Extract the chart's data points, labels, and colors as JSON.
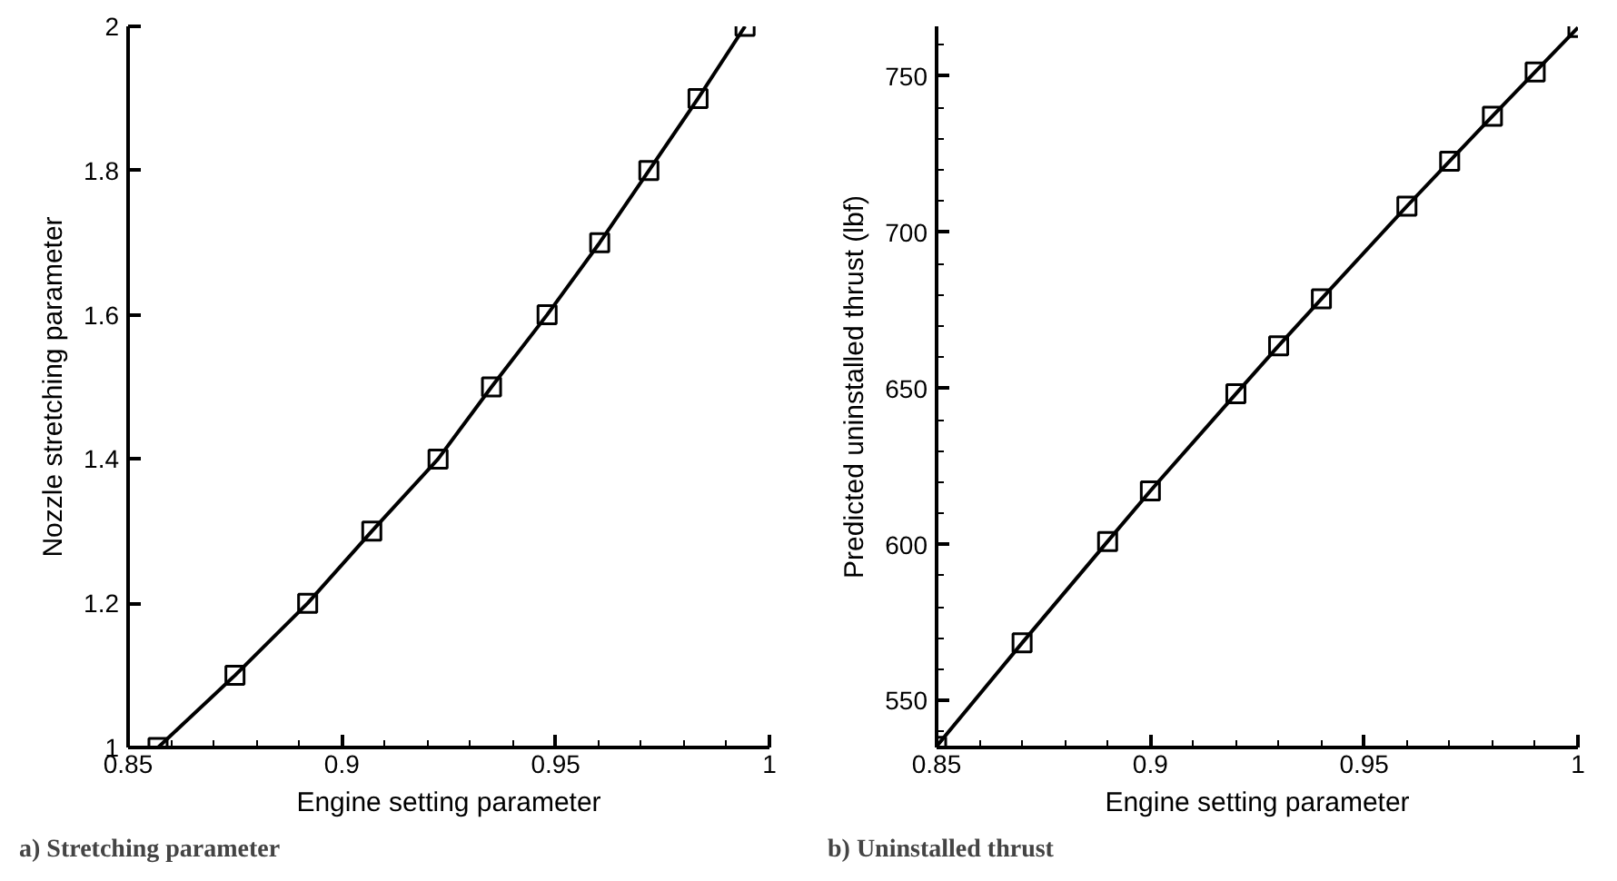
{
  "chart_data": [
    {
      "type": "line",
      "title": "a) Stretching parameter",
      "xlabel": "Engine setting parameter",
      "ylabel": "Nozzle stretching parameter",
      "x": [
        0.857,
        0.875,
        0.892,
        0.907,
        0.9225,
        0.935,
        0.948,
        0.9603,
        0.9718,
        0.9833,
        0.9943
      ],
      "series": [
        {
          "color": "#000000",
          "values": [
            1.0,
            1.1,
            1.2,
            1.3,
            1.4,
            1.5,
            1.6,
            1.7,
            1.8,
            1.9,
            2.0
          ]
        }
      ],
      "xlim": [
        0.85,
        1
      ],
      "ylim": [
        1,
        2
      ],
      "xticks": [
        0.85,
        {
          "value": 0.86,
          "label": null
        },
        {
          "value": 0.87,
          "label": null
        },
        {
          "value": 0.88,
          "label": null
        },
        {
          "value": 0.89,
          "label": null
        },
        0.9,
        {
          "value": 0.91,
          "label": null
        },
        {
          "value": 0.92,
          "label": null
        },
        {
          "value": 0.93,
          "label": null
        },
        {
          "value": 0.94,
          "label": null
        },
        0.95,
        {
          "value": 0.96,
          "label": null
        },
        {
          "value": 0.97,
          "label": null
        },
        {
          "value": 0.98,
          "label": null
        },
        {
          "value": 0.99,
          "label": null
        },
        1
      ],
      "yticks": [
        1,
        1.2,
        1.4,
        1.6,
        1.8,
        2
      ],
      "marker": "square",
      "line_style": "solid",
      "grid": false
    },
    {
      "type": "line",
      "title": "b) Uninstalled thrust",
      "xlabel": "Engine setting parameter",
      "ylabel": "Predicted uninstalled thrust (lbf)",
      "x": [
        0.85,
        0.87,
        0.89,
        0.9,
        0.92,
        0.93,
        0.94,
        0.96,
        0.97,
        0.98,
        0.99,
        1.0
      ],
      "series": [
        {
          "color": "#000000",
          "values": [
            535.4,
            568.5,
            601,
            617.2,
            648.3,
            663.7,
            678.7,
            708.4,
            722.8,
            737.2,
            751.4,
            765.6
          ]
        }
      ],
      "xlim": [
        0.85,
        1
      ],
      "ylim": [
        535,
        766
      ],
      "xticks": [
        0.85,
        {
          "value": 0.86,
          "label": null
        },
        {
          "value": 0.87,
          "label": null
        },
        {
          "value": 0.88,
          "label": null
        },
        {
          "value": 0.89,
          "label": null
        },
        0.9,
        {
          "value": 0.91,
          "label": null
        },
        {
          "value": 0.92,
          "label": null
        },
        {
          "value": 0.93,
          "label": null
        },
        {
          "value": 0.94,
          "label": null
        },
        0.95,
        {
          "value": 0.96,
          "label": null
        },
        {
          "value": 0.97,
          "label": null
        },
        {
          "value": 0.98,
          "label": null
        },
        {
          "value": 0.99,
          "label": null
        },
        1
      ],
      "yticks": [
        {
          "value": 540,
          "label": null
        },
        550,
        {
          "value": 560,
          "label": null
        },
        {
          "value": 570,
          "label": null
        },
        {
          "value": 580,
          "label": null
        },
        {
          "value": 590,
          "label": null
        },
        600,
        {
          "value": 610,
          "label": null
        },
        {
          "value": 620,
          "label": null
        },
        {
          "value": 630,
          "label": null
        },
        {
          "value": 640,
          "label": null
        },
        650,
        {
          "value": 660,
          "label": null
        },
        {
          "value": 670,
          "label": null
        },
        {
          "value": 680,
          "label": null
        },
        {
          "value": 690,
          "label": null
        },
        700,
        {
          "value": 710,
          "label": null
        },
        {
          "value": 720,
          "label": null
        },
        {
          "value": 730,
          "label": null
        },
        {
          "value": 740,
          "label": null
        },
        750,
        {
          "value": 760,
          "label": null
        }
      ],
      "marker": "square",
      "line_style": "solid",
      "grid": false
    }
  ]
}
